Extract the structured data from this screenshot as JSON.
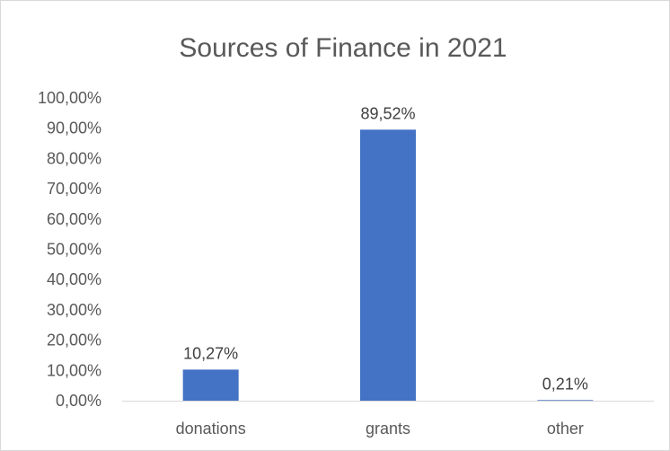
{
  "chart_data": {
    "type": "bar",
    "title": "Sources of Finance in 2021",
    "xlabel": "",
    "ylabel": "",
    "categories": [
      "donations",
      "grants",
      "other"
    ],
    "values": [
      10.27,
      89.52,
      0.21
    ],
    "data_labels": [
      "10,27%",
      "89,52%",
      "0,21%"
    ],
    "ylim": [
      0,
      100
    ],
    "y_ticks": [
      0,
      10,
      20,
      30,
      40,
      50,
      60,
      70,
      80,
      90,
      100
    ],
    "y_tick_labels": [
      "0,00%",
      "10,00%",
      "20,00%",
      "30,00%",
      "40,00%",
      "50,00%",
      "60,00%",
      "70,00%",
      "80,00%",
      "90,00%",
      "100,00%"
    ],
    "grid": false,
    "legend": "none",
    "bar_color": "#4472C4",
    "axis_color": "#d9d9d9"
  }
}
